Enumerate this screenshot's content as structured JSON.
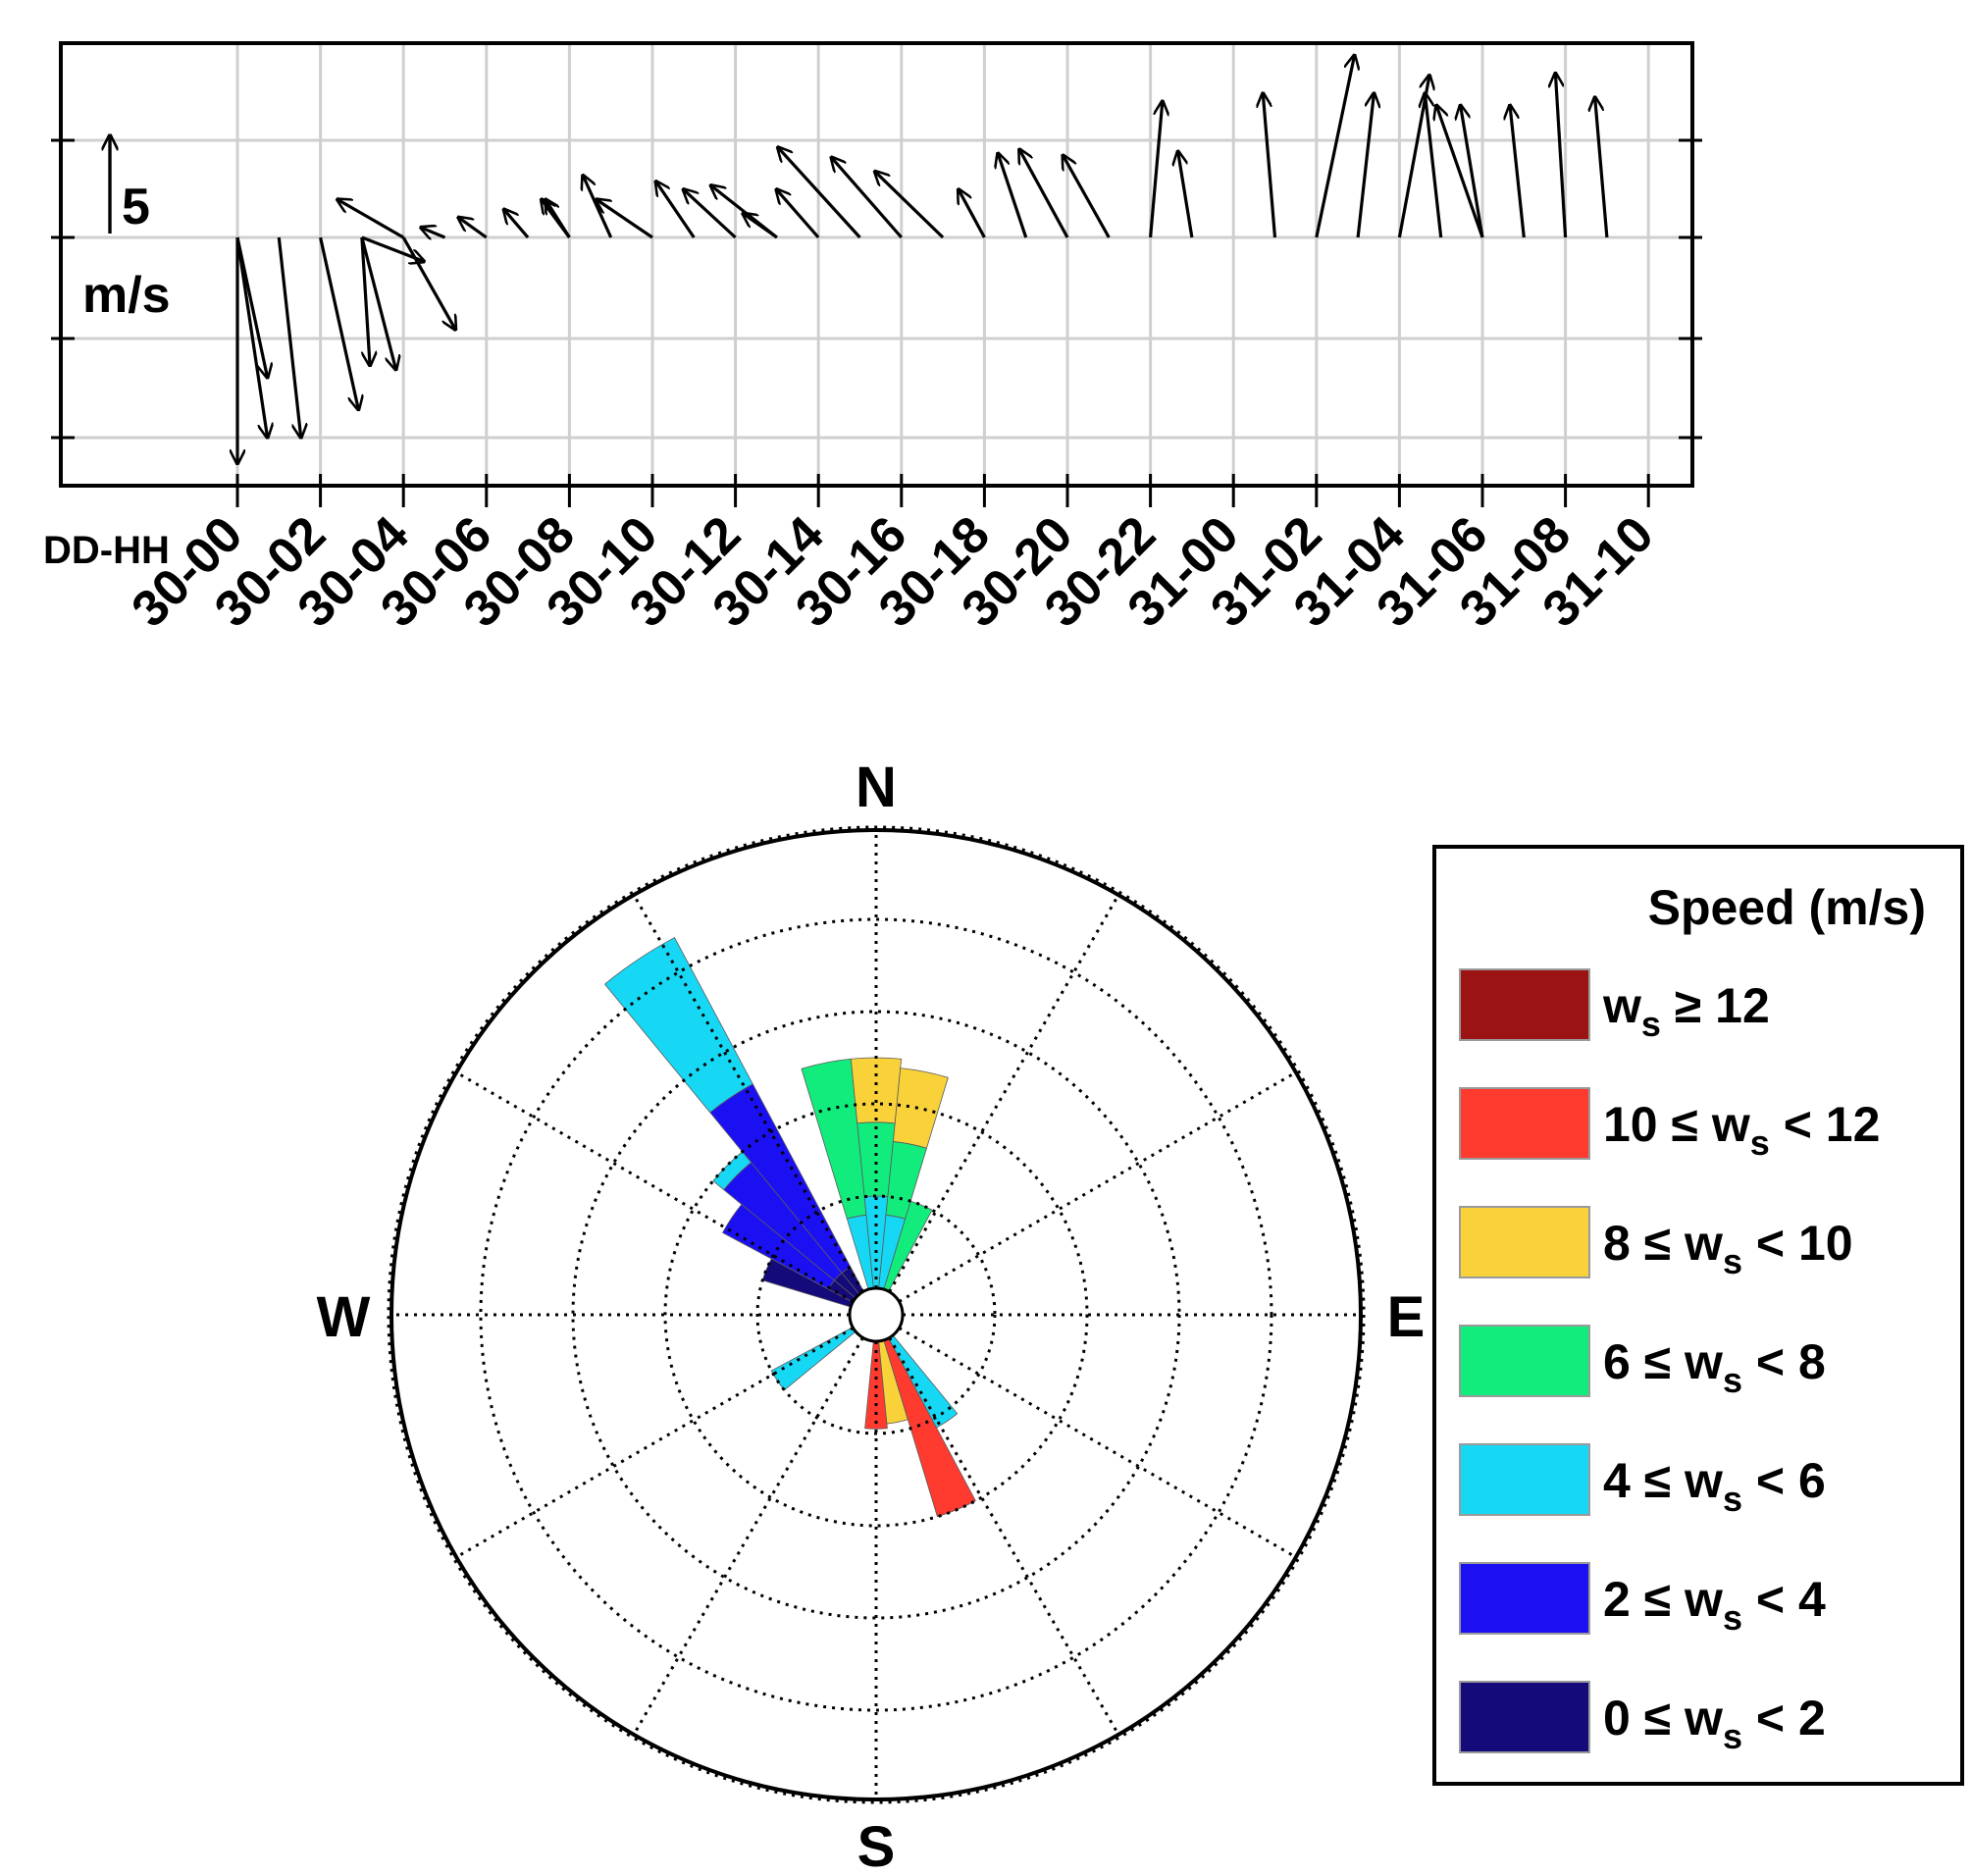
{
  "chart_data": [
    {
      "type": "vector",
      "xlabel": "DD-HH",
      "x_tick_labels": [
        "30-00",
        "30-02",
        "30-04",
        "30-06",
        "30-08",
        "30-10",
        "30-12",
        "30-14",
        "30-16",
        "30-18",
        "30-20",
        "30-22",
        "31-00",
        "31-02",
        "31-04",
        "31-06",
        "31-08",
        "31-10"
      ],
      "scale_arrow": {
        "value": "5",
        "unit": "m/s"
      },
      "grid": true,
      "series": [
        {
          "values": [
            {
              "t": "30-00",
              "u": 1.5,
              "v": -7.0
            },
            {
              "t": "30-00",
              "u": 0.0,
              "v": -11.3
            },
            {
              "t": "30-00",
              "u": 1.5,
              "v": -10.0
            },
            {
              "t": "30-01",
              "u": 1.1,
              "v": -10.0
            },
            {
              "t": "30-02",
              "u": 1.9,
              "v": -8.6
            },
            {
              "t": "30-03",
              "u": 0.4,
              "v": -6.4
            },
            {
              "t": "30-03",
              "u": 1.7,
              "v": -6.6
            },
            {
              "t": "30-03",
              "u": 3.1,
              "v": -1.2
            },
            {
              "t": "30-04",
              "u": -3.3,
              "v": 1.9
            },
            {
              "t": "30-04",
              "u": 2.6,
              "v": -4.6
            },
            {
              "t": "30-05",
              "u": -1.2,
              "v": 0.5
            },
            {
              "t": "30-06",
              "u": -1.4,
              "v": 1.0
            },
            {
              "t": "30-07",
              "u": -1.2,
              "v": 1.4
            },
            {
              "t": "30-08",
              "u": -1.4,
              "v": 1.9
            },
            {
              "t": "30-08",
              "u": -1.2,
              "v": 1.9
            },
            {
              "t": "30-09",
              "u": -1.4,
              "v": 3.1
            },
            {
              "t": "30-10",
              "u": -2.8,
              "v": 1.9
            },
            {
              "t": "30-11",
              "u": -1.9,
              "v": 2.8
            },
            {
              "t": "30-12",
              "u": -2.6,
              "v": 2.4
            },
            {
              "t": "30-13",
              "u": -1.7,
              "v": 1.2
            },
            {
              "t": "30-13",
              "u": -3.3,
              "v": 2.6
            },
            {
              "t": "30-14",
              "u": -2.1,
              "v": 2.4
            },
            {
              "t": "30-15",
              "u": -4.1,
              "v": 4.5
            },
            {
              "t": "30-16",
              "u": -3.5,
              "v": 4.0
            },
            {
              "t": "30-17",
              "u": -3.4,
              "v": 3.3
            },
            {
              "t": "30-18",
              "u": -1.3,
              "v": 2.4
            },
            {
              "t": "30-19",
              "u": -1.4,
              "v": 4.2
            },
            {
              "t": "30-20",
              "u": -2.4,
              "v": 4.4
            },
            {
              "t": "30-21",
              "u": -2.3,
              "v": 4.1
            },
            {
              "t": "30-22",
              "u": 0.6,
              "v": 6.8
            },
            {
              "t": "30-23",
              "u": -0.7,
              "v": 4.3
            },
            {
              "t": "31-01",
              "u": -0.6,
              "v": 7.2
            },
            {
              "t": "31-02",
              "u": 1.9,
              "v": 9.1
            },
            {
              "t": "31-03",
              "u": 0.8,
              "v": 7.2
            },
            {
              "t": "31-04",
              "u": 1.5,
              "v": 8.1
            },
            {
              "t": "31-05",
              "u": -0.8,
              "v": 7.2
            },
            {
              "t": "31-06",
              "u": -2.3,
              "v": 6.6
            },
            {
              "t": "31-06",
              "u": -1.1,
              "v": 6.6
            },
            {
              "t": "31-07",
              "u": -0.7,
              "v": 6.6
            },
            {
              "t": "31-08",
              "u": -0.5,
              "v": 8.2
            },
            {
              "t": "31-09",
              "u": -0.6,
              "v": 7.0
            }
          ]
        }
      ]
    },
    {
      "type": "windrose",
      "compass": [
        "N",
        "E",
        "S",
        "W"
      ],
      "legend": {
        "title": "Speed (m/s)",
        "placement": "right",
        "bins": [
          {
            "lo": "",
            "op1": "",
            "mid": "w",
            "sub": "s",
            "op2": "≥",
            "hi": "12",
            "color": "#9b1313"
          },
          {
            "lo": "10",
            "op1": "≤",
            "mid": "w",
            "sub": "s",
            "op2": "<",
            "hi": "12",
            "color": "#ff3a2f"
          },
          {
            "lo": "8",
            "op1": "≤",
            "mid": "w",
            "sub": "s",
            "op2": "<",
            "hi": "10",
            "color": "#f9d23a"
          },
          {
            "lo": "6",
            "op1": "≤",
            "mid": "w",
            "sub": "s",
            "op2": "<",
            "hi": "8",
            "color": "#12ec7c"
          },
          {
            "lo": "4",
            "op1": "≤",
            "mid": "w",
            "sub": "s",
            "op2": "<",
            "hi": "6",
            "color": "#17d8f4"
          },
          {
            "lo": "2",
            "op1": "≤",
            "mid": "w",
            "sub": "s",
            "op2": "<",
            "hi": "4",
            "color": "#1b10f2"
          },
          {
            "lo": "0",
            "op1": "≤",
            "mid": "w",
            "sub": "s",
            "op2": "<",
            "hi": "2",
            "color": "#150a7a"
          }
        ]
      },
      "frequency_rings": 5,
      "sectors": [
        {
          "dir": -33.75,
          "cum": {
            "0-2": 0.3,
            "2-4": 2.55,
            "4-6": 4.35
          }
        },
        {
          "dir": -45.0,
          "cum": {
            "0-2": 0.3,
            "2-4": 1.85,
            "4-6": 2.0
          }
        },
        {
          "dir": -56.25,
          "cum": {
            "0-2": 0.3,
            "2-4": 1.6
          }
        },
        {
          "dir": -67.5,
          "cum": {
            "0-2": 1.0
          }
        },
        {
          "dir": -11.25,
          "cum": {
            "4-6": 0.8,
            "6-8": 2.5
          }
        },
        {
          "dir": 0.0,
          "cum": {
            "4-6": 1.0,
            "6-8": 1.8,
            "8-10": 2.5
          }
        },
        {
          "dir": 11.25,
          "cum": {
            "4-6": 0.8,
            "6-8": 1.6,
            "8-10": 2.4
          }
        },
        {
          "dir": 22.5,
          "cum": {
            "6-8": 1.0
          }
        },
        {
          "dir": -123.75,
          "cum": {
            "4-6": 1.0
          }
        },
        {
          "dir": 180.0,
          "cum": {
            "10-12": 0.95
          }
        },
        {
          "dir": 168.75,
          "cum": {
            "8-10": 0.9
          }
        },
        {
          "dir": 157.5,
          "cum": {
            "10-12": 2.0
          }
        },
        {
          "dir": 146.25,
          "cum": {
            "4-6": 1.1
          }
        }
      ]
    }
  ]
}
